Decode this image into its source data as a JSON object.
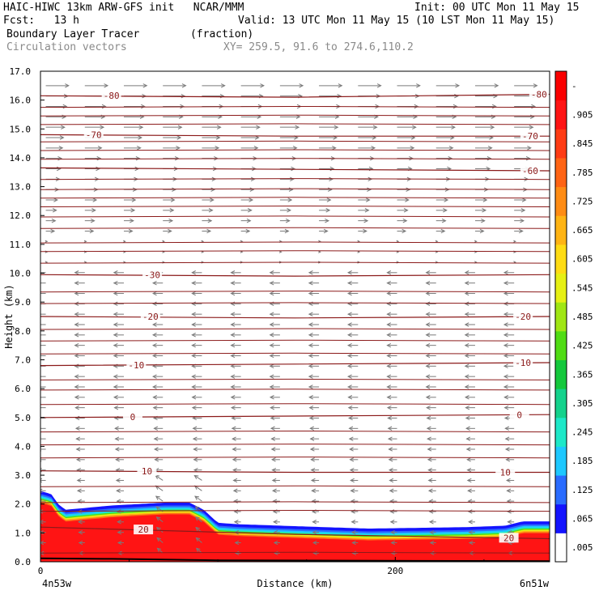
{
  "header": {
    "model_line": "HAIC-HIWC 13km ARW-GFS init   NCAR/MMM",
    "init_line": "Init: 00 UTC Mon 11 May 15",
    "fcst_line": "Fcst:   13 h",
    "valid_line": "Valid: 13 UTC Mon 11 May 15 (10 LST Mon 11 May 15)",
    "field_line": "Boundary Layer Tracer        (fraction)",
    "vector_line": "Circulation vectors",
    "xy_line": "XY= 259.5, 91.6 to 274.6,110.2"
  },
  "chart_data": {
    "type": "heatmap",
    "xlabel": "Distance (km)",
    "ylabel": "Height (km)",
    "xlim": [
      0,
      287
    ],
    "ylim": [
      0,
      17
    ],
    "x_ticks": [
      {
        "value": 0,
        "label": "0"
      },
      {
        "value": 200,
        "label": "200"
      }
    ],
    "y_ticks": [
      {
        "value": 0,
        "label": "0.0"
      },
      {
        "value": 1,
        "label": "1.0"
      },
      {
        "value": 2,
        "label": "2.0"
      },
      {
        "value": 3,
        "label": "3.0"
      },
      {
        "value": 4,
        "label": "4.0"
      },
      {
        "value": 5,
        "label": "5.0"
      },
      {
        "value": 6,
        "label": "6.0"
      },
      {
        "value": 7,
        "label": "7.0"
      },
      {
        "value": 8,
        "label": "8.0"
      },
      {
        "value": 9,
        "label": "9.0"
      },
      {
        "value": 10,
        "label": "10.0"
      },
      {
        "value": 11,
        "label": "11.0"
      },
      {
        "value": 12,
        "label": "12.0"
      },
      {
        "value": 13,
        "label": "13.0"
      },
      {
        "value": 14,
        "label": "14.0"
      },
      {
        "value": 15,
        "label": "15.0"
      },
      {
        "value": 16,
        "label": "16.0"
      },
      {
        "value": 17,
        "label": "17.0"
      }
    ],
    "endpoint_labels": {
      "left": "4n53w",
      "right": "6n51w"
    },
    "colorbar": {
      "labels": [
        ".005",
        ".065",
        ".125",
        ".185",
        ".245",
        ".305",
        ".365",
        ".425",
        ".485",
        ".545",
        ".605",
        ".665",
        ".725",
        ".785",
        ".845",
        ".905",
        "-"
      ],
      "colors": [
        "#ffffff",
        "#1414ff",
        "#2a6cff",
        "#1ec8ff",
        "#1ee8c8",
        "#14d28c",
        "#14c83c",
        "#50dc14",
        "#a0e614",
        "#e6f014",
        "#ffdc14",
        "#ffb414",
        "#ff8c14",
        "#ff6414",
        "#ff3c14",
        "#ff1414",
        "#fa0000"
      ]
    },
    "tracer_top_km": [
      {
        "x": 0,
        "h": 2.45
      },
      {
        "x": 6,
        "h": 2.35
      },
      {
        "x": 10,
        "h": 2.0
      },
      {
        "x": 14,
        "h": 1.8
      },
      {
        "x": 40,
        "h": 1.95
      },
      {
        "x": 70,
        "h": 2.05
      },
      {
        "x": 84,
        "h": 2.05
      },
      {
        "x": 92,
        "h": 1.8
      },
      {
        "x": 100,
        "h": 1.35
      },
      {
        "x": 112,
        "h": 1.3
      },
      {
        "x": 150,
        "h": 1.22
      },
      {
        "x": 185,
        "h": 1.15
      },
      {
        "x": 240,
        "h": 1.2
      },
      {
        "x": 262,
        "h": 1.25
      },
      {
        "x": 272,
        "h": 1.4
      },
      {
        "x": 287,
        "h": 1.4
      }
    ],
    "isotherms": [
      {
        "value": "20",
        "heights": [
          1.2,
          0.95,
          0.8
        ],
        "label_x": 58,
        "label_x2": 264
      },
      {
        "value": "10",
        "heights": [
          3.15,
          3.1,
          3.1
        ],
        "label_x": 60,
        "label_x2": 262
      },
      {
        "value": "0",
        "heights": [
          5.0,
          5.05,
          5.1
        ],
        "label_x": 52,
        "label_x2": 270
      },
      {
        "value": "-10",
        "heights": [
          6.8,
          6.85,
          6.9
        ],
        "label_x": 54,
        "label_x2": 272
      },
      {
        "value": "-20",
        "heights": [
          8.5,
          8.45,
          8.5
        ],
        "label_x": 62,
        "label_x2": 272
      },
      {
        "value": "-30",
        "heights": [
          9.95,
          9.9,
          9.95
        ],
        "label_x": 63,
        "label_x2": null
      },
      {
        "value": "-60",
        "heights": [
          13.65,
          13.6,
          13.55
        ],
        "label_x": null,
        "label_x2": 276
      },
      {
        "value": "-70",
        "heights": [
          14.8,
          14.75,
          14.75
        ],
        "label_x": 30,
        "label_x2": 276
      },
      {
        "value": "-80",
        "heights": [
          16.15,
          16.1,
          16.2
        ],
        "label_x": 40,
        "label_x2": 281
      }
    ],
    "extra_contours_km": [
      0.3,
      1.75,
      2.05,
      2.6,
      3.6,
      4.05,
      4.5,
      5.45,
      5.95,
      6.3,
      7.2,
      7.65,
      8.05,
      8.95,
      9.35,
      10.35,
      10.75,
      11.05,
      11.55,
      11.95,
      12.3,
      12.6,
      12.9,
      13.25,
      13.95,
      14.25,
      14.55,
      15.15,
      15.45,
      15.75
    ]
  }
}
